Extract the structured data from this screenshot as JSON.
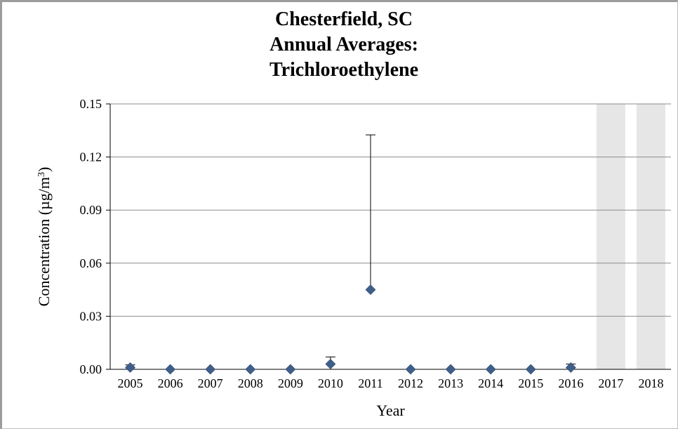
{
  "chart_data": {
    "type": "scatter",
    "title_lines": [
      "Chesterfield, SC",
      "Annual Averages:",
      "Trichloroethylene"
    ],
    "xlabel": "Year",
    "ylabel": "Concentration (µg/m",
    "ylabel_superscript": "3",
    "ylabel_suffix": ")",
    "categories": [
      "2005",
      "2006",
      "2007",
      "2008",
      "2009",
      "2010",
      "2011",
      "2012",
      "2013",
      "2014",
      "2015",
      "2016",
      "2017",
      "2018"
    ],
    "y_tick_labels": [
      "0.00",
      "0.03",
      "0.06",
      "0.09",
      "0.12",
      "0.15"
    ],
    "ylim": [
      0,
      0.15
    ],
    "grid": true,
    "series": [
      {
        "values": [
          0.001,
          0.0,
          0.0,
          0.0,
          0.0,
          0.003,
          0.045,
          0.0,
          0.0,
          0.0,
          0.0,
          0.001,
          null,
          null
        ],
        "error_upper": [
          0.0025,
          null,
          null,
          null,
          null,
          0.007,
          0.1325,
          null,
          null,
          null,
          null,
          0.003,
          null,
          null
        ],
        "error_lower": [
          0.0,
          null,
          null,
          null,
          null,
          0.0,
          0.0,
          null,
          null,
          null,
          null,
          0.0,
          null,
          null
        ]
      }
    ],
    "shaded_categories": [
      "2017",
      "2018"
    ],
    "colors": {
      "marker": "#3f5f8a",
      "grid": "#8c8c8c",
      "shade": "#e6e6e6",
      "error_bar": "#000000"
    }
  }
}
